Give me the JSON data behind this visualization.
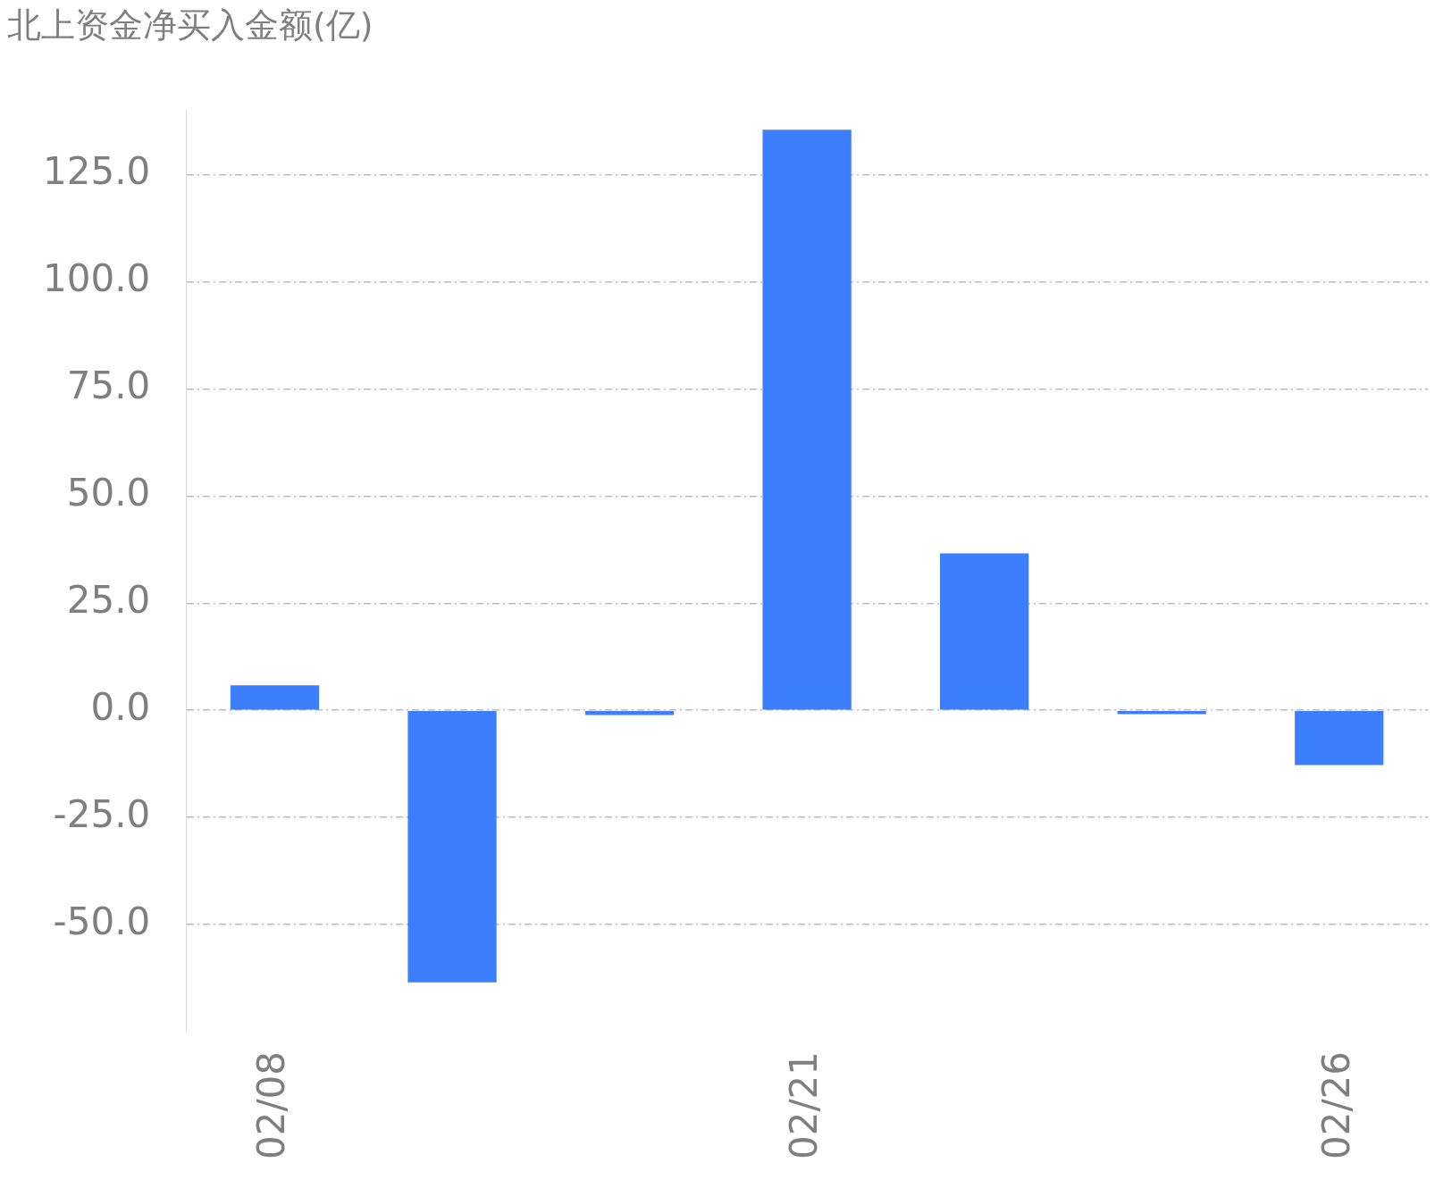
{
  "chart_data": {
    "type": "bar",
    "title": "北上资金净买入金额(亿)",
    "categories": [
      "02/08",
      null,
      null,
      "02/21",
      null,
      null,
      "02/26"
    ],
    "values": [
      5.8,
      -63.5,
      -1.1,
      135.5,
      36.6,
      -0.9,
      -12.8
    ],
    "color": "#3d7efe",
    "ylim": [
      -75,
      140
    ],
    "yticks": [
      {
        "value": -50,
        "label": "-50.0"
      },
      {
        "value": -25,
        "label": "-25.0"
      },
      {
        "value": 0,
        "label": "0.0"
      },
      {
        "value": 25,
        "label": "25.0"
      },
      {
        "value": 50,
        "label": "50.0"
      },
      {
        "value": 75,
        "label": "75.0"
      },
      {
        "value": 100,
        "label": "100.0"
      },
      {
        "value": 125,
        "label": "125.0"
      }
    ],
    "grid": "y"
  }
}
